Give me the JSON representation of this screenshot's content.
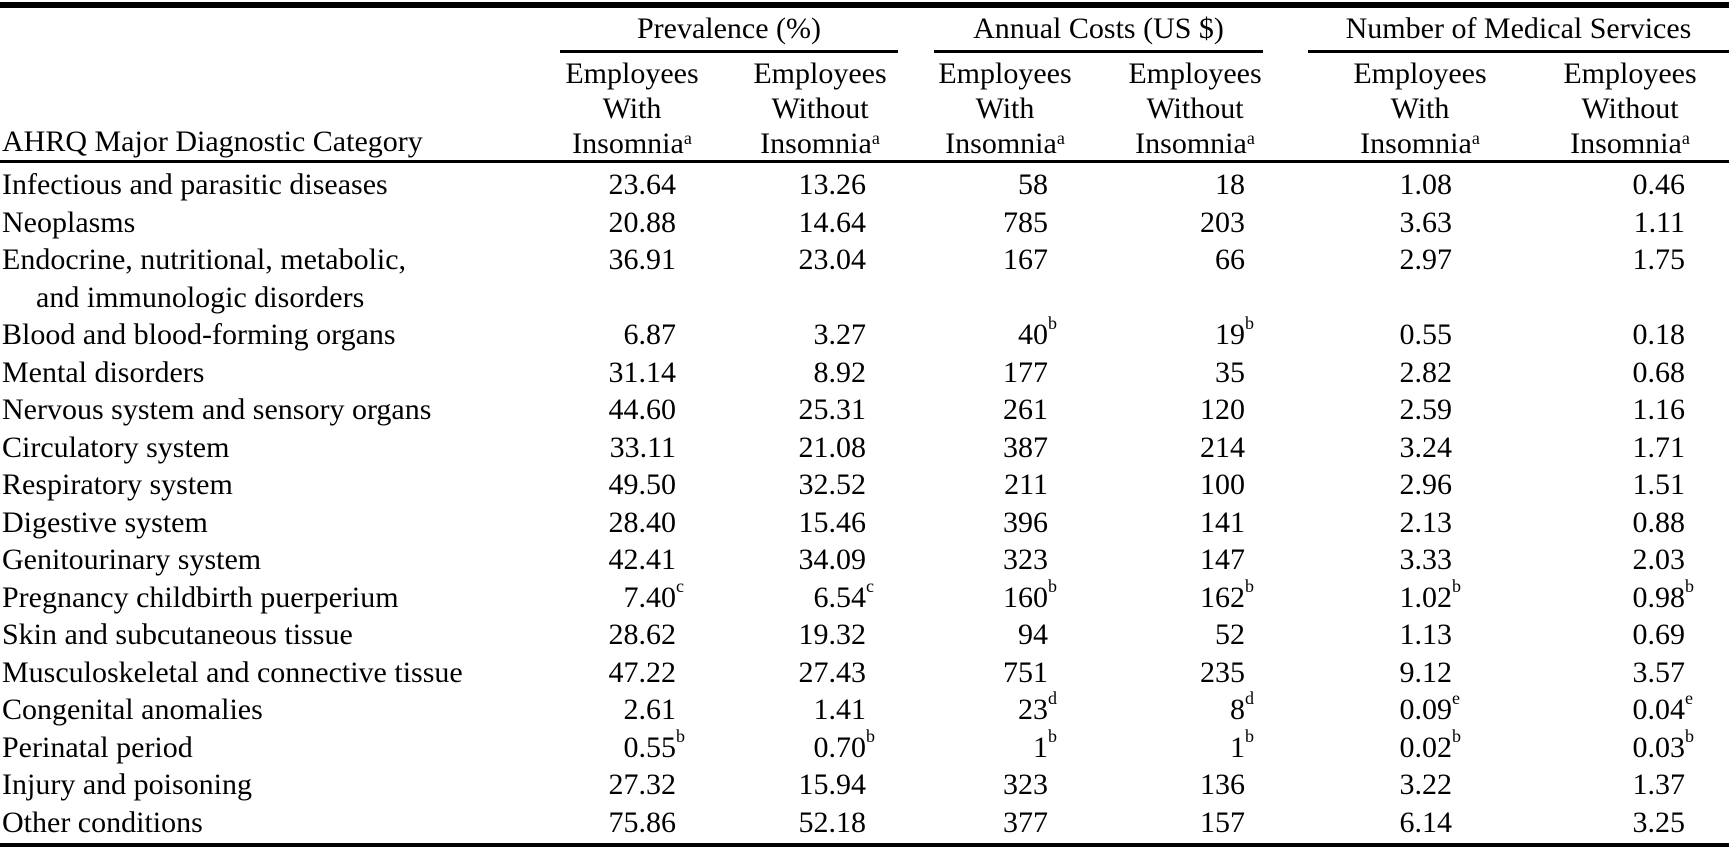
{
  "page": {
    "background": "#ffffff",
    "text_color": "#000000"
  },
  "table": {
    "category_header": "AHRQ Major Diagnostic Category",
    "groups": [
      {
        "label": "Prevalence (%)"
      },
      {
        "label": "Annual Costs (US $)"
      },
      {
        "label": "Number of Medical Services"
      }
    ],
    "column_headers": [
      {
        "lines": [
          "Employees",
          "With",
          "Insomnia"
        ],
        "marker": "a"
      },
      {
        "lines": [
          "Employees",
          "Without",
          "Insomnia"
        ],
        "marker": "a"
      },
      {
        "lines": [
          "Employees",
          "With",
          "Insomnia"
        ],
        "marker": "a"
      },
      {
        "lines": [
          "Employees",
          "Without",
          "Insomnia"
        ],
        "marker": "a"
      },
      {
        "lines": [
          "Employees",
          "With",
          "Insomnia"
        ],
        "marker": "a"
      },
      {
        "lines": [
          "Employees",
          "Without",
          "Insomnia"
        ],
        "marker": "a"
      }
    ],
    "rows": [
      {
        "category": [
          "Infectious and parasitic diseases"
        ],
        "values": [
          {
            "v": "23.64",
            "m": ""
          },
          {
            "v": "13.26",
            "m": ""
          },
          {
            "v": "58",
            "m": ""
          },
          {
            "v": "18",
            "m": ""
          },
          {
            "v": "1.08",
            "m": ""
          },
          {
            "v": "0.46",
            "m": ""
          }
        ]
      },
      {
        "category": [
          "Neoplasms"
        ],
        "values": [
          {
            "v": "20.88",
            "m": ""
          },
          {
            "v": "14.64",
            "m": ""
          },
          {
            "v": "785",
            "m": ""
          },
          {
            "v": "203",
            "m": ""
          },
          {
            "v": "3.63",
            "m": ""
          },
          {
            "v": "1.11",
            "m": ""
          }
        ]
      },
      {
        "category": [
          "Endocrine, nutritional, metabolic,",
          "and immunologic disorders"
        ],
        "values": [
          {
            "v": "36.91",
            "m": ""
          },
          {
            "v": "23.04",
            "m": ""
          },
          {
            "v": "167",
            "m": ""
          },
          {
            "v": "66",
            "m": ""
          },
          {
            "v": "2.97",
            "m": ""
          },
          {
            "v": "1.75",
            "m": ""
          }
        ]
      },
      {
        "category": [
          "Blood and blood-forming organs"
        ],
        "values": [
          {
            "v": "6.87",
            "m": ""
          },
          {
            "v": "3.27",
            "m": ""
          },
          {
            "v": "40",
            "m": "b"
          },
          {
            "v": "19",
            "m": "b"
          },
          {
            "v": "0.55",
            "m": ""
          },
          {
            "v": "0.18",
            "m": ""
          }
        ]
      },
      {
        "category": [
          "Mental disorders"
        ],
        "values": [
          {
            "v": "31.14",
            "m": ""
          },
          {
            "v": "8.92",
            "m": ""
          },
          {
            "v": "177",
            "m": ""
          },
          {
            "v": "35",
            "m": ""
          },
          {
            "v": "2.82",
            "m": ""
          },
          {
            "v": "0.68",
            "m": ""
          }
        ]
      },
      {
        "category": [
          "Nervous system and sensory organs"
        ],
        "values": [
          {
            "v": "44.60",
            "m": ""
          },
          {
            "v": "25.31",
            "m": ""
          },
          {
            "v": "261",
            "m": ""
          },
          {
            "v": "120",
            "m": ""
          },
          {
            "v": "2.59",
            "m": ""
          },
          {
            "v": "1.16",
            "m": ""
          }
        ]
      },
      {
        "category": [
          "Circulatory system"
        ],
        "values": [
          {
            "v": "33.11",
            "m": ""
          },
          {
            "v": "21.08",
            "m": ""
          },
          {
            "v": "387",
            "m": ""
          },
          {
            "v": "214",
            "m": ""
          },
          {
            "v": "3.24",
            "m": ""
          },
          {
            "v": "1.71",
            "m": ""
          }
        ]
      },
      {
        "category": [
          "Respiratory system"
        ],
        "values": [
          {
            "v": "49.50",
            "m": ""
          },
          {
            "v": "32.52",
            "m": ""
          },
          {
            "v": "211",
            "m": ""
          },
          {
            "v": "100",
            "m": ""
          },
          {
            "v": "2.96",
            "m": ""
          },
          {
            "v": "1.51",
            "m": ""
          }
        ]
      },
      {
        "category": [
          "Digestive system"
        ],
        "values": [
          {
            "v": "28.40",
            "m": ""
          },
          {
            "v": "15.46",
            "m": ""
          },
          {
            "v": "396",
            "m": ""
          },
          {
            "v": "141",
            "m": ""
          },
          {
            "v": "2.13",
            "m": ""
          },
          {
            "v": "0.88",
            "m": ""
          }
        ]
      },
      {
        "category": [
          "Genitourinary system"
        ],
        "values": [
          {
            "v": "42.41",
            "m": ""
          },
          {
            "v": "34.09",
            "m": ""
          },
          {
            "v": "323",
            "m": ""
          },
          {
            "v": "147",
            "m": ""
          },
          {
            "v": "3.33",
            "m": ""
          },
          {
            "v": "2.03",
            "m": ""
          }
        ]
      },
      {
        "category": [
          "Pregnancy childbirth puerperium"
        ],
        "values": [
          {
            "v": "7.40",
            "m": "c"
          },
          {
            "v": "6.54",
            "m": "c"
          },
          {
            "v": "160",
            "m": "b"
          },
          {
            "v": "162",
            "m": "b"
          },
          {
            "v": "1.02",
            "m": "b"
          },
          {
            "v": "0.98",
            "m": "b"
          }
        ]
      },
      {
        "category": [
          "Skin and subcutaneous tissue"
        ],
        "values": [
          {
            "v": "28.62",
            "m": ""
          },
          {
            "v": "19.32",
            "m": ""
          },
          {
            "v": "94",
            "m": ""
          },
          {
            "v": "52",
            "m": ""
          },
          {
            "v": "1.13",
            "m": ""
          },
          {
            "v": "0.69",
            "m": ""
          }
        ]
      },
      {
        "category": [
          "Musculoskeletal and connective tissue"
        ],
        "values": [
          {
            "v": "47.22",
            "m": ""
          },
          {
            "v": "27.43",
            "m": ""
          },
          {
            "v": "751",
            "m": ""
          },
          {
            "v": "235",
            "m": ""
          },
          {
            "v": "9.12",
            "m": ""
          },
          {
            "v": "3.57",
            "m": ""
          }
        ]
      },
      {
        "category": [
          "Congenital anomalies"
        ],
        "values": [
          {
            "v": "2.61",
            "m": ""
          },
          {
            "v": "1.41",
            "m": ""
          },
          {
            "v": "23",
            "m": "d"
          },
          {
            "v": "8",
            "m": "d"
          },
          {
            "v": "0.09",
            "m": "e"
          },
          {
            "v": "0.04",
            "m": "e"
          }
        ]
      },
      {
        "category": [
          "Perinatal period"
        ],
        "values": [
          {
            "v": "0.55",
            "m": "b"
          },
          {
            "v": "0.70",
            "m": "b"
          },
          {
            "v": "1",
            "m": "b"
          },
          {
            "v": "1",
            "m": "b"
          },
          {
            "v": "0.02",
            "m": "b"
          },
          {
            "v": "0.03",
            "m": "b"
          }
        ]
      },
      {
        "category": [
          "Injury and poisoning"
        ],
        "values": [
          {
            "v": "27.32",
            "m": ""
          },
          {
            "v": "15.94",
            "m": ""
          },
          {
            "v": "323",
            "m": ""
          },
          {
            "v": "136",
            "m": ""
          },
          {
            "v": "3.22",
            "m": ""
          },
          {
            "v": "1.37",
            "m": ""
          }
        ]
      },
      {
        "category": [
          "Other conditions"
        ],
        "values": [
          {
            "v": "75.86",
            "m": ""
          },
          {
            "v": "52.18",
            "m": ""
          },
          {
            "v": "377",
            "m": ""
          },
          {
            "v": "157",
            "m": ""
          },
          {
            "v": "6.14",
            "m": ""
          },
          {
            "v": "3.25",
            "m": ""
          }
        ]
      }
    ]
  }
}
